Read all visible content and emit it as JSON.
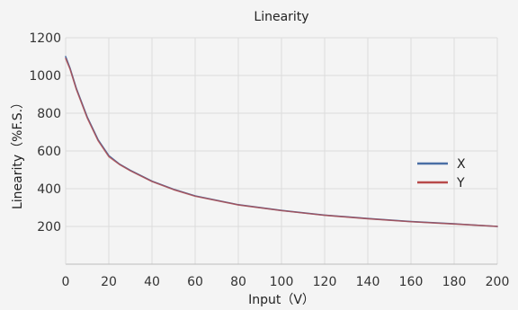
{
  "chart_data": {
    "type": "line",
    "title": "Linearity",
    "xlabel": "Input（V）",
    "ylabel": "Linearity（%F.S.）",
    "xlim": [
      0,
      200
    ],
    "ylim": [
      0,
      1200
    ],
    "x_ticks": [
      0,
      20,
      40,
      60,
      80,
      100,
      120,
      140,
      160,
      180,
      200
    ],
    "y_ticks": [
      200,
      400,
      600,
      800,
      1000,
      1200
    ],
    "grid": true,
    "legend_position": "right",
    "series": [
      {
        "name": "X",
        "color": "#4a6fa5",
        "x": [
          0,
          2,
          5,
          10,
          15,
          20,
          25,
          30,
          40,
          50,
          60,
          80,
          100,
          120,
          140,
          160,
          180,
          200
        ],
        "y": [
          1100,
          1040,
          930,
          780,
          660,
          575,
          530,
          497,
          440,
          397,
          362,
          315,
          285,
          260,
          242,
          226,
          214,
          200
        ]
      },
      {
        "name": "Y",
        "color": "#b84a4a",
        "x": [
          0,
          2,
          5,
          10,
          15,
          20,
          25,
          30,
          40,
          50,
          60,
          80,
          100,
          120,
          140,
          160,
          180,
          200
        ],
        "y": [
          1090,
          1035,
          925,
          775,
          655,
          570,
          528,
          495,
          438,
          395,
          360,
          314,
          284,
          259,
          241,
          225,
          213,
          200
        ]
      }
    ]
  }
}
